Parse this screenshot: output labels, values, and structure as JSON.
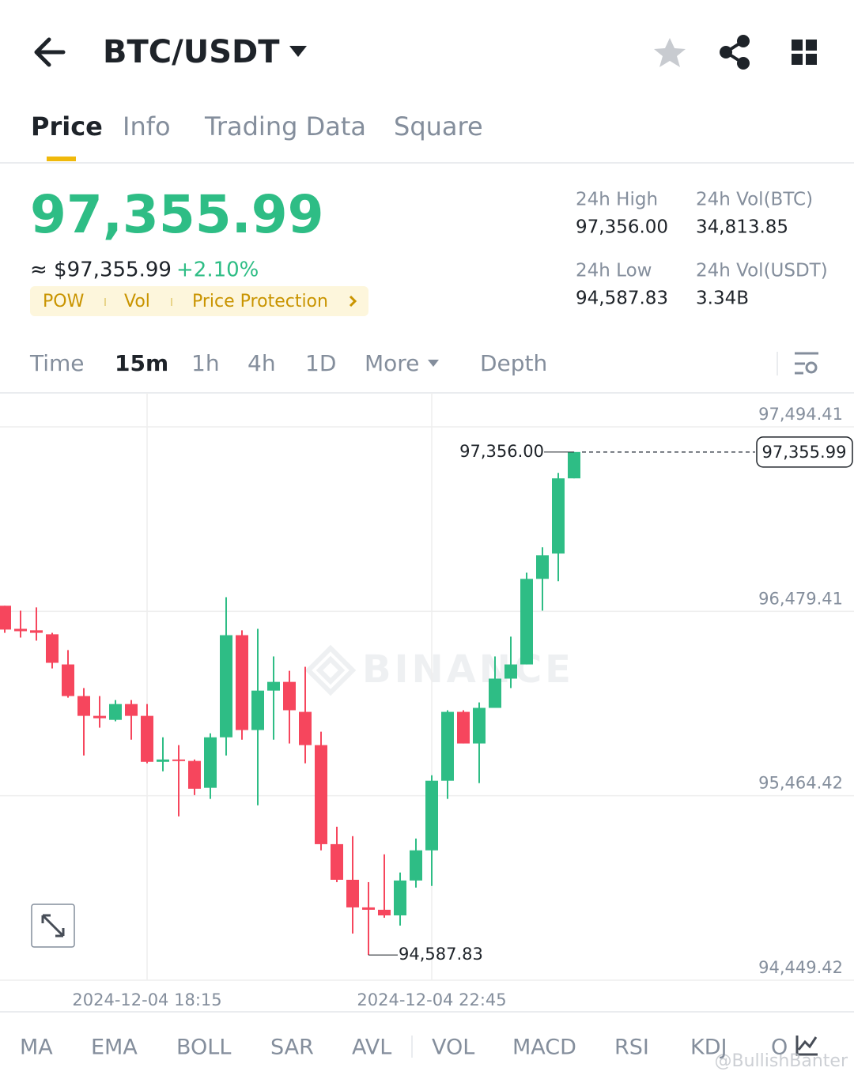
{
  "header": {
    "pair": "BTC/USDT"
  },
  "tabs": [
    "Price",
    "Info",
    "Trading Data",
    "Square"
  ],
  "price": {
    "last": "97,355.99",
    "fiat": "≈ $97,355.99",
    "change": "+2.10%",
    "tags": [
      "POW",
      "Vol",
      "Price Protection"
    ]
  },
  "stats": [
    {
      "label": "24h High",
      "value": "97,356.00"
    },
    {
      "label": "24h Vol(BTC)",
      "value": "34,813.85"
    },
    {
      "label": "24h Low",
      "value": "94,587.83"
    },
    {
      "label": "24h Vol(USDT)",
      "value": "3.34B"
    }
  ],
  "intervals": [
    "Time",
    "15m",
    "1h",
    "4h",
    "1D",
    "More",
    "Depth"
  ],
  "chart_data": {
    "type": "candlestick",
    "watermark": "BINANCE",
    "up_color": "#2ebd85",
    "down_color": "#f6465d",
    "ylim": [
      94449.42,
      97494.41
    ],
    "yticks": [
      {
        "value": 97494.41,
        "label": "97,494.41"
      },
      {
        "value": 96479.41,
        "label": "96,479.41"
      },
      {
        "value": 95464.42,
        "label": "95,464.42"
      },
      {
        "value": 94449.42,
        "label": "94,449.42"
      }
    ],
    "xticks": [
      {
        "value": 9,
        "label": "2024-12-04 18:15"
      },
      {
        "value": 27,
        "label": "2024-12-04 22:45"
      }
    ],
    "grid": true,
    "high_label": "97,356.00",
    "low_label": "94,587.83",
    "last_label": "97,355.99",
    "candles": [
      {
        "open": 96510,
        "close": 96379,
        "high": 96510,
        "low": 96361
      },
      {
        "open": 96383,
        "close": 96370,
        "high": 96483,
        "low": 96335
      },
      {
        "open": 96375,
        "close": 96361,
        "high": 96501,
        "low": 96318
      },
      {
        "open": 96353,
        "close": 96196,
        "high": 96361,
        "low": 96165
      },
      {
        "open": 96187,
        "close": 96013,
        "high": 96266,
        "low": 96004
      },
      {
        "open": 96013,
        "close": 95904,
        "high": 96057,
        "low": 95686
      },
      {
        "open": 95904,
        "close": 95891,
        "high": 96013,
        "low": 95839
      },
      {
        "open": 95882,
        "close": 95969,
        "high": 95991,
        "low": 95874
      },
      {
        "open": 95969,
        "close": 95904,
        "high": 95991,
        "low": 95773
      },
      {
        "open": 95904,
        "close": 95651,
        "high": 95969,
        "low": 95643
      },
      {
        "open": 95651,
        "close": 95664,
        "high": 95786,
        "low": 95599
      },
      {
        "open": 95664,
        "close": 95656,
        "high": 95743,
        "low": 95351
      },
      {
        "open": 95656,
        "close": 95503,
        "high": 95664,
        "low": 95468
      },
      {
        "open": 95508,
        "close": 95786,
        "high": 95808,
        "low": 95447
      },
      {
        "open": 95786,
        "close": 96348,
        "high": 96557,
        "low": 95686
      },
      {
        "open": 96348,
        "close": 95826,
        "high": 96375,
        "low": 95773
      },
      {
        "open": 95826,
        "close": 96043,
        "high": 96383,
        "low": 95412
      },
      {
        "open": 96043,
        "close": 96091,
        "high": 96231,
        "low": 95773
      },
      {
        "open": 96091,
        "close": 95935,
        "high": 96152,
        "low": 95752
      },
      {
        "open": 95926,
        "close": 95743,
        "high": 96174,
        "low": 95643
      },
      {
        "open": 95743,
        "close": 95198,
        "high": 95817,
        "low": 95164
      },
      {
        "open": 95198,
        "close": 95002,
        "high": 95294,
        "low": 94989
      },
      {
        "open": 95002,
        "close": 94850,
        "high": 95242,
        "low": 94706
      },
      {
        "open": 94850,
        "close": 94837,
        "high": 94989,
        "low": 94587.83
      },
      {
        "open": 94837,
        "close": 94806,
        "high": 95142,
        "low": 94793
      },
      {
        "open": 94806,
        "close": 94998,
        "high": 95042,
        "low": 94750
      },
      {
        "open": 94998,
        "close": 95164,
        "high": 95229,
        "low": 94959
      },
      {
        "open": 95164,
        "close": 95547,
        "high": 95577,
        "low": 94968
      },
      {
        "open": 95547,
        "close": 95926,
        "high": 95935,
        "low": 95447
      },
      {
        "open": 95926,
        "close": 95752,
        "high": 95935,
        "low": 95752
      },
      {
        "open": 95752,
        "close": 95948,
        "high": 95978,
        "low": 95534
      },
      {
        "open": 95948,
        "close": 96109,
        "high": 96231,
        "low": 95948
      },
      {
        "open": 96109,
        "close": 96187,
        "high": 96340,
        "low": 96057
      },
      {
        "open": 96187,
        "close": 96658,
        "high": 96692,
        "low": 96187
      },
      {
        "open": 96658,
        "close": 96788,
        "high": 96832,
        "low": 96483
      },
      {
        "open": 96797,
        "close": 97211,
        "high": 97241,
        "low": 96645
      },
      {
        "open": 97211,
        "close": 97355.99,
        "high": 97356.0,
        "low": 97211
      }
    ]
  },
  "indicators": [
    "MA",
    "EMA",
    "BOLL",
    "SAR",
    "AVL",
    "VOL",
    "MACD",
    "RSI",
    "KDJ",
    "O"
  ],
  "watermark": "@BullishBanter"
}
